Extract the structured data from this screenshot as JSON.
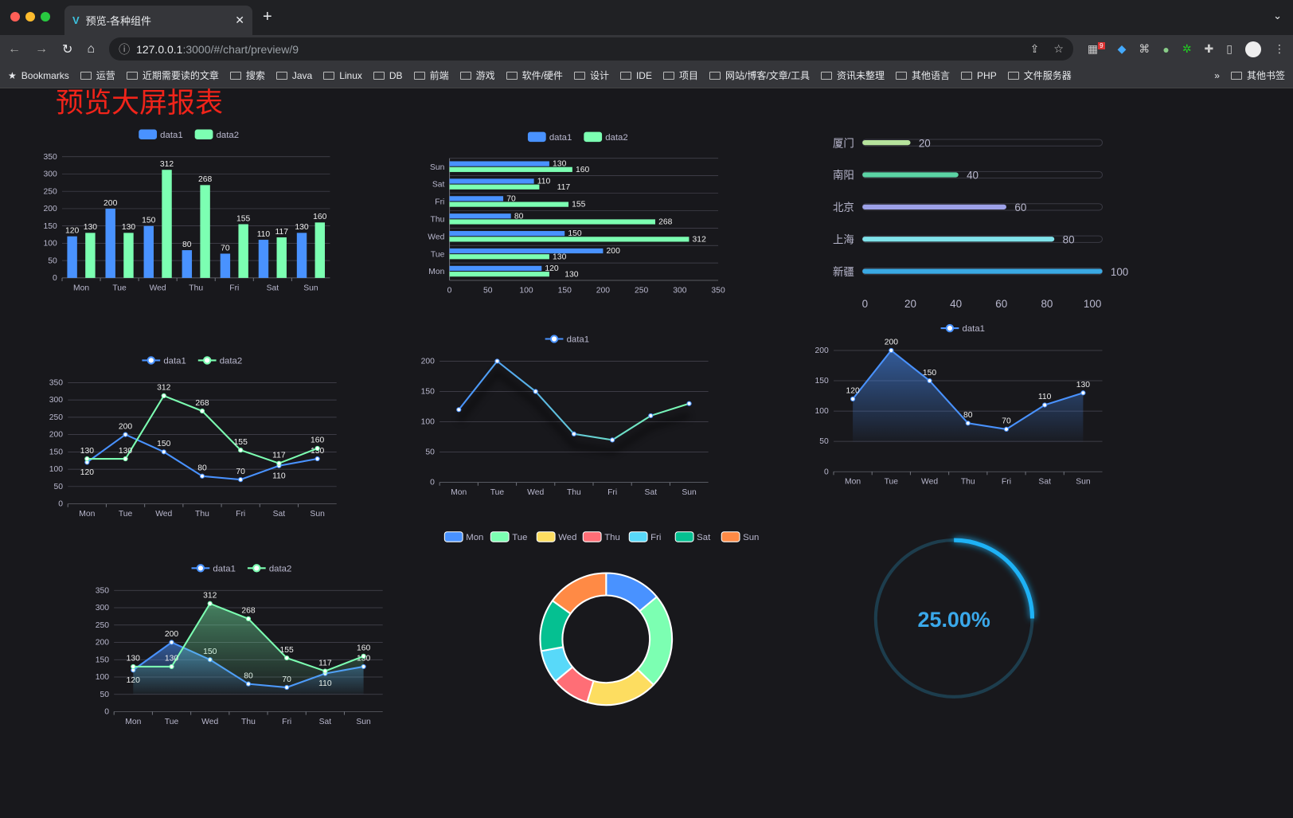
{
  "browser": {
    "tab_title": "预览-各种组件",
    "url_host": "127.0.0.1",
    "url_rest": ":3000/#/chart/preview/9",
    "ext_badge": "9",
    "bookmarks": [
      "Bookmarks",
      "运营",
      "近期需要读的文章",
      "搜索",
      "Java",
      "Linux",
      "DB",
      "前端",
      "游戏",
      "软件/硬件",
      "设计",
      "IDE",
      "项目",
      "网站/博客/文章/工具",
      "资讯未整理",
      "其他语言",
      "PHP",
      "文件服务器"
    ],
    "more": "»",
    "other_bookmarks": "其他书签"
  },
  "page_title": "预览大屏报表",
  "colors": {
    "data1": "#4992ff",
    "data2": "#7cffb2",
    "axis": "#6e7079",
    "text": "#b9b8ce",
    "grid": "#484753",
    "bg": "#18181c"
  },
  "chart_data": [
    {
      "type": "bar",
      "categories": [
        "Mon",
        "Tue",
        "Wed",
        "Thu",
        "Fri",
        "Sat",
        "Sun"
      ],
      "series": [
        {
          "name": "data1",
          "values": [
            120,
            200,
            150,
            80,
            70,
            110,
            130
          ]
        },
        {
          "name": "data2",
          "values": [
            130,
            130,
            312,
            268,
            155,
            117,
            160
          ]
        }
      ],
      "ylim": [
        0,
        350
      ],
      "yticks": [
        0,
        50,
        100,
        150,
        200,
        250,
        300,
        350
      ],
      "legend": "top",
      "grid": true
    },
    {
      "type": "bar",
      "orientation": "horizontal",
      "categories": [
        "Mon",
        "Tue",
        "Wed",
        "Thu",
        "Fri",
        "Sat",
        "Sun"
      ],
      "series": [
        {
          "name": "data1",
          "values": [
            120,
            200,
            150,
            80,
            70,
            110,
            130
          ]
        },
        {
          "name": "data2",
          "values": [
            130,
            130,
            312,
            268,
            155,
            117,
            160
          ]
        }
      ],
      "xlim": [
        0,
        350
      ],
      "xticks": [
        0,
        50,
        100,
        150,
        200,
        250,
        300,
        350
      ],
      "legend": "top",
      "grid": true
    },
    {
      "type": "bar",
      "orientation": "horizontal",
      "style": "progress",
      "categories": [
        "厦门",
        "南阳",
        "北京",
        "上海",
        "新疆"
      ],
      "values": [
        20,
        40,
        60,
        80,
        100
      ],
      "colors": [
        "#b6e39c",
        "#5bd3a5",
        "#9da1e8",
        "#7fe2ea",
        "#3aa9e4"
      ],
      "xlim": [
        0,
        100
      ],
      "xticks": [
        0,
        20,
        40,
        60,
        80,
        100
      ]
    },
    {
      "type": "line",
      "categories": [
        "Mon",
        "Tue",
        "Wed",
        "Thu",
        "Fri",
        "Sat",
        "Sun"
      ],
      "series": [
        {
          "name": "data1",
          "values": [
            120,
            200,
            150,
            80,
            70,
            110,
            130
          ]
        },
        {
          "name": "data2",
          "values": [
            130,
            130,
            312,
            268,
            155,
            117,
            160
          ]
        }
      ],
      "ylim": [
        0,
        350
      ],
      "yticks": [
        0,
        50,
        100,
        150,
        200,
        250,
        300,
        350
      ],
      "legend": "top",
      "grid": true
    },
    {
      "type": "line",
      "style": "gradient-glow",
      "categories": [
        "Mon",
        "Tue",
        "Wed",
        "Thu",
        "Fri",
        "Sat",
        "Sun"
      ],
      "series": [
        {
          "name": "data1",
          "values": [
            120,
            200,
            150,
            80,
            70,
            110,
            130
          ]
        }
      ],
      "ylim": [
        0,
        200
      ],
      "yticks": [
        0,
        50,
        100,
        150,
        200
      ],
      "legend": "top",
      "grid": true
    },
    {
      "type": "area",
      "categories": [
        "Mon",
        "Tue",
        "Wed",
        "Thu",
        "Fri",
        "Sat",
        "Sun"
      ],
      "series": [
        {
          "name": "data1",
          "values": [
            120,
            200,
            150,
            80,
            70,
            110,
            130
          ]
        }
      ],
      "ylim": [
        0,
        200
      ],
      "yticks": [
        0,
        50,
        100,
        150,
        200
      ],
      "legend": "top",
      "grid": true
    },
    {
      "type": "area",
      "categories": [
        "Mon",
        "Tue",
        "Wed",
        "Thu",
        "Fri",
        "Sat",
        "Sun"
      ],
      "series": [
        {
          "name": "data1",
          "values": [
            120,
            200,
            150,
            80,
            70,
            110,
            130
          ]
        },
        {
          "name": "data2",
          "values": [
            130,
            130,
            312,
            268,
            155,
            117,
            160
          ]
        }
      ],
      "ylim": [
        0,
        350
      ],
      "yticks": [
        0,
        50,
        100,
        150,
        200,
        250,
        300,
        350
      ],
      "legend": "top",
      "grid": true
    },
    {
      "type": "pie",
      "style": "donut",
      "categories": [
        "Mon",
        "Tue",
        "Wed",
        "Thu",
        "Fri",
        "Sat",
        "Sun"
      ],
      "values": [
        120,
        200,
        150,
        80,
        70,
        110,
        130
      ],
      "colors": [
        "#4992ff",
        "#7cffb2",
        "#fddd60",
        "#ff6e76",
        "#58d9f9",
        "#05c091",
        "#ff8a45"
      ],
      "legend": "top"
    },
    {
      "type": "gauge",
      "style": "ring-progress",
      "value": 25,
      "label": "25.00%",
      "color": "#1eb2f6",
      "track": "#1d3d4d"
    }
  ]
}
